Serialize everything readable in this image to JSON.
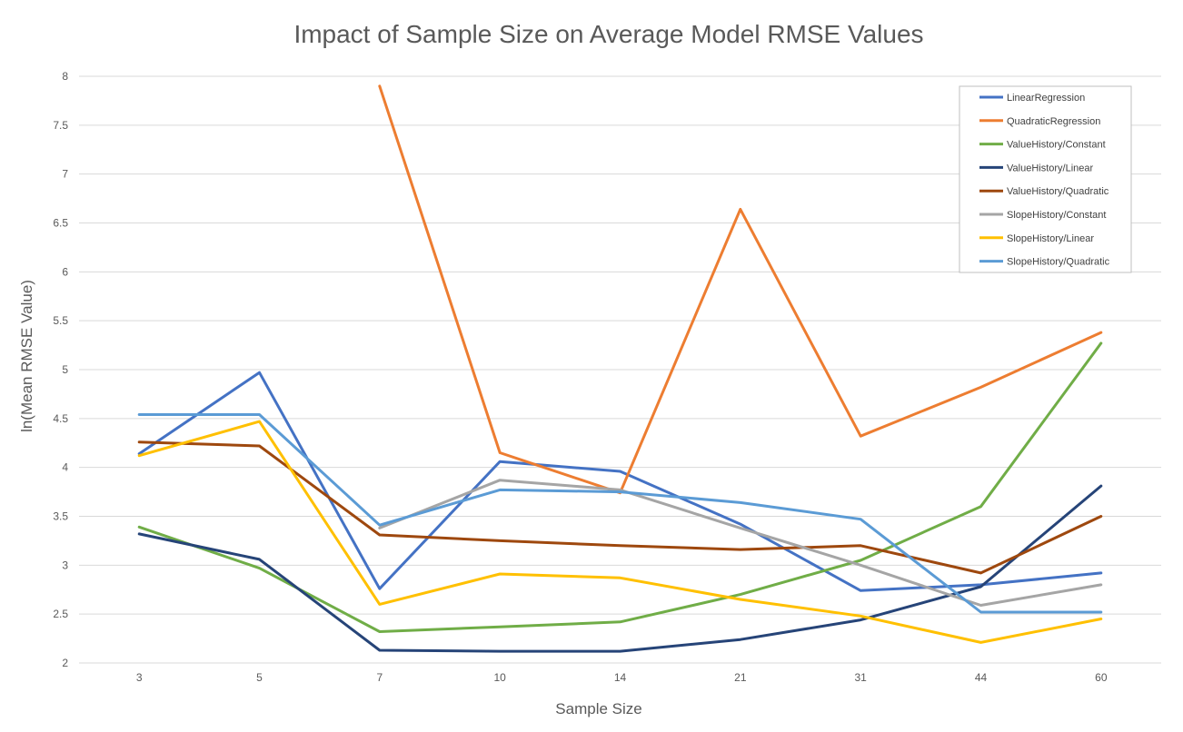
{
  "chart_data": {
    "type": "line",
    "title": "Impact of Sample Size on Average Model RMSE Values",
    "xlabel": "Sample Size",
    "ylabel": "ln(Mean RMSE Value)",
    "categories": [
      "3",
      "5",
      "7",
      "10",
      "14",
      "21",
      "31",
      "44",
      "60"
    ],
    "ylim": [
      2,
      8
    ],
    "yticks": [
      "2",
      "2.5",
      "3",
      "3.5",
      "4",
      "4.5",
      "5",
      "5.5",
      "6",
      "6.5",
      "7",
      "7.5",
      "8"
    ],
    "grid": true,
    "legend_position": "top-right",
    "series": [
      {
        "name": "LinearRegression",
        "color": "#4472c4",
        "values": [
          4.14,
          4.97,
          2.76,
          4.06,
          3.96,
          3.42,
          2.74,
          2.8,
          2.92
        ]
      },
      {
        "name": "QuadraticRegression",
        "color": "#ed7d31",
        "values": [
          null,
          null,
          7.9,
          4.15,
          3.74,
          6.64,
          4.32,
          4.82,
          5.38
        ]
      },
      {
        "name": "ValueHistory/Constant",
        "color": "#70ad47",
        "values": [
          3.39,
          2.97,
          2.32,
          2.37,
          2.42,
          2.7,
          3.05,
          3.6,
          5.27
        ]
      },
      {
        "name": "ValueHistory/Linear",
        "color": "#264478",
        "values": [
          3.32,
          3.06,
          2.13,
          2.12,
          2.12,
          2.24,
          2.44,
          2.78,
          3.81
        ]
      },
      {
        "name": "ValueHistory/Quadratic",
        "color": "#9e480e",
        "values": [
          4.26,
          4.22,
          3.31,
          3.25,
          3.2,
          3.16,
          3.2,
          2.92,
          3.5
        ]
      },
      {
        "name": "SlopeHistory/Constant",
        "color": "#a5a5a5",
        "values": [
          null,
          null,
          3.38,
          3.87,
          3.77,
          3.38,
          3.0,
          2.59,
          2.8
        ]
      },
      {
        "name": "SlopeHistory/Linear",
        "color": "#ffc000",
        "values": [
          4.12,
          4.47,
          2.6,
          2.91,
          2.87,
          2.65,
          2.48,
          2.21,
          2.45
        ]
      },
      {
        "name": "SlopeHistory/Quadratic",
        "color": "#5b9bd5",
        "values": [
          4.54,
          4.54,
          3.41,
          3.77,
          3.75,
          3.64,
          3.47,
          2.52,
          2.52
        ]
      }
    ]
  }
}
